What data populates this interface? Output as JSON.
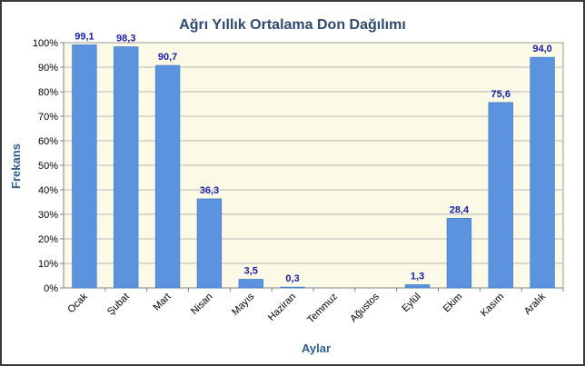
{
  "chart_data": {
    "type": "bar",
    "title": "Ağrı Yıllık Ortalama Don Dağılımı",
    "xlabel": "Aylar",
    "ylabel": "Frekans",
    "ylim": [
      0,
      100
    ],
    "ytick_step": 10,
    "ytick_suffix": "%",
    "grid": true,
    "legend": "none",
    "categories": [
      "Ocak",
      "Şubat",
      "Mart",
      "Nisan",
      "Mayıs",
      "Haziran",
      "Temmuz",
      "Ağustos",
      "Eylül",
      "Ekim",
      "Kasım",
      "Aralık"
    ],
    "values": [
      99.1,
      98.3,
      90.7,
      36.3,
      3.5,
      0.3,
      0,
      0,
      1.3,
      28.4,
      75.6,
      94.0
    ],
    "data_labels": [
      "99,1",
      "98,3",
      "90,7",
      "36,3",
      "3,5",
      "0,3",
      "",
      "",
      "1,3",
      "28,4",
      "75,6",
      "94,0"
    ],
    "colors": {
      "bar": "#5b93de",
      "bar_stroke": "#4a7fc6",
      "plot_bg": "#fafae6",
      "grid": "#b8b8b8",
      "title": "#2e4a6e",
      "axis_title": "#2e5f91",
      "data_label": "#1a1aaa",
      "tick": "#000000"
    }
  }
}
